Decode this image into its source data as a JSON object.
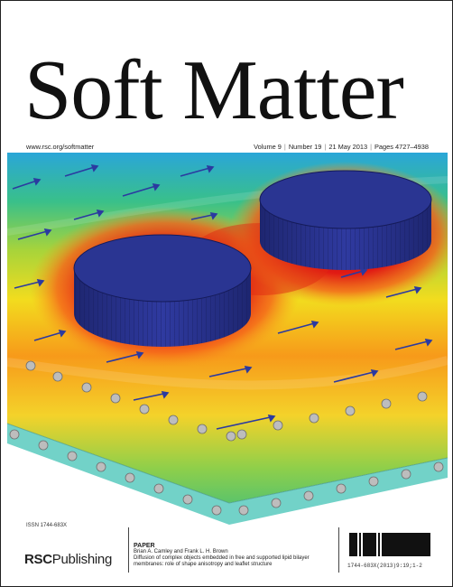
{
  "cover": {
    "journal_title": "Soft Matter",
    "website": "www.rsc.org/softmatter",
    "volume": "Volume 9",
    "number": "Number 19",
    "date": "21 May 2013",
    "pages": "Pages 4727–4938",
    "separator": "|"
  },
  "footer": {
    "issn": "ISSN 1744-683X",
    "publisher_strong": "RSC",
    "publisher_rest": "Publishing",
    "paper_label": "PAPER",
    "authors": "Brian A. Camley and Frank L. H. Brown",
    "article_title": "Diffusion of complex objects embedded in free and supported lipid bilayer membranes: role of shape anisotropy and leaflet structure",
    "barcode_text": "1744-683X(2013)9:19;1-2"
  },
  "colors": {
    "disk": "#2a3592",
    "arrow": "#2b3aa0",
    "membrane_fill": "#72d2c8",
    "lipid_head": "#bdbdbd"
  }
}
